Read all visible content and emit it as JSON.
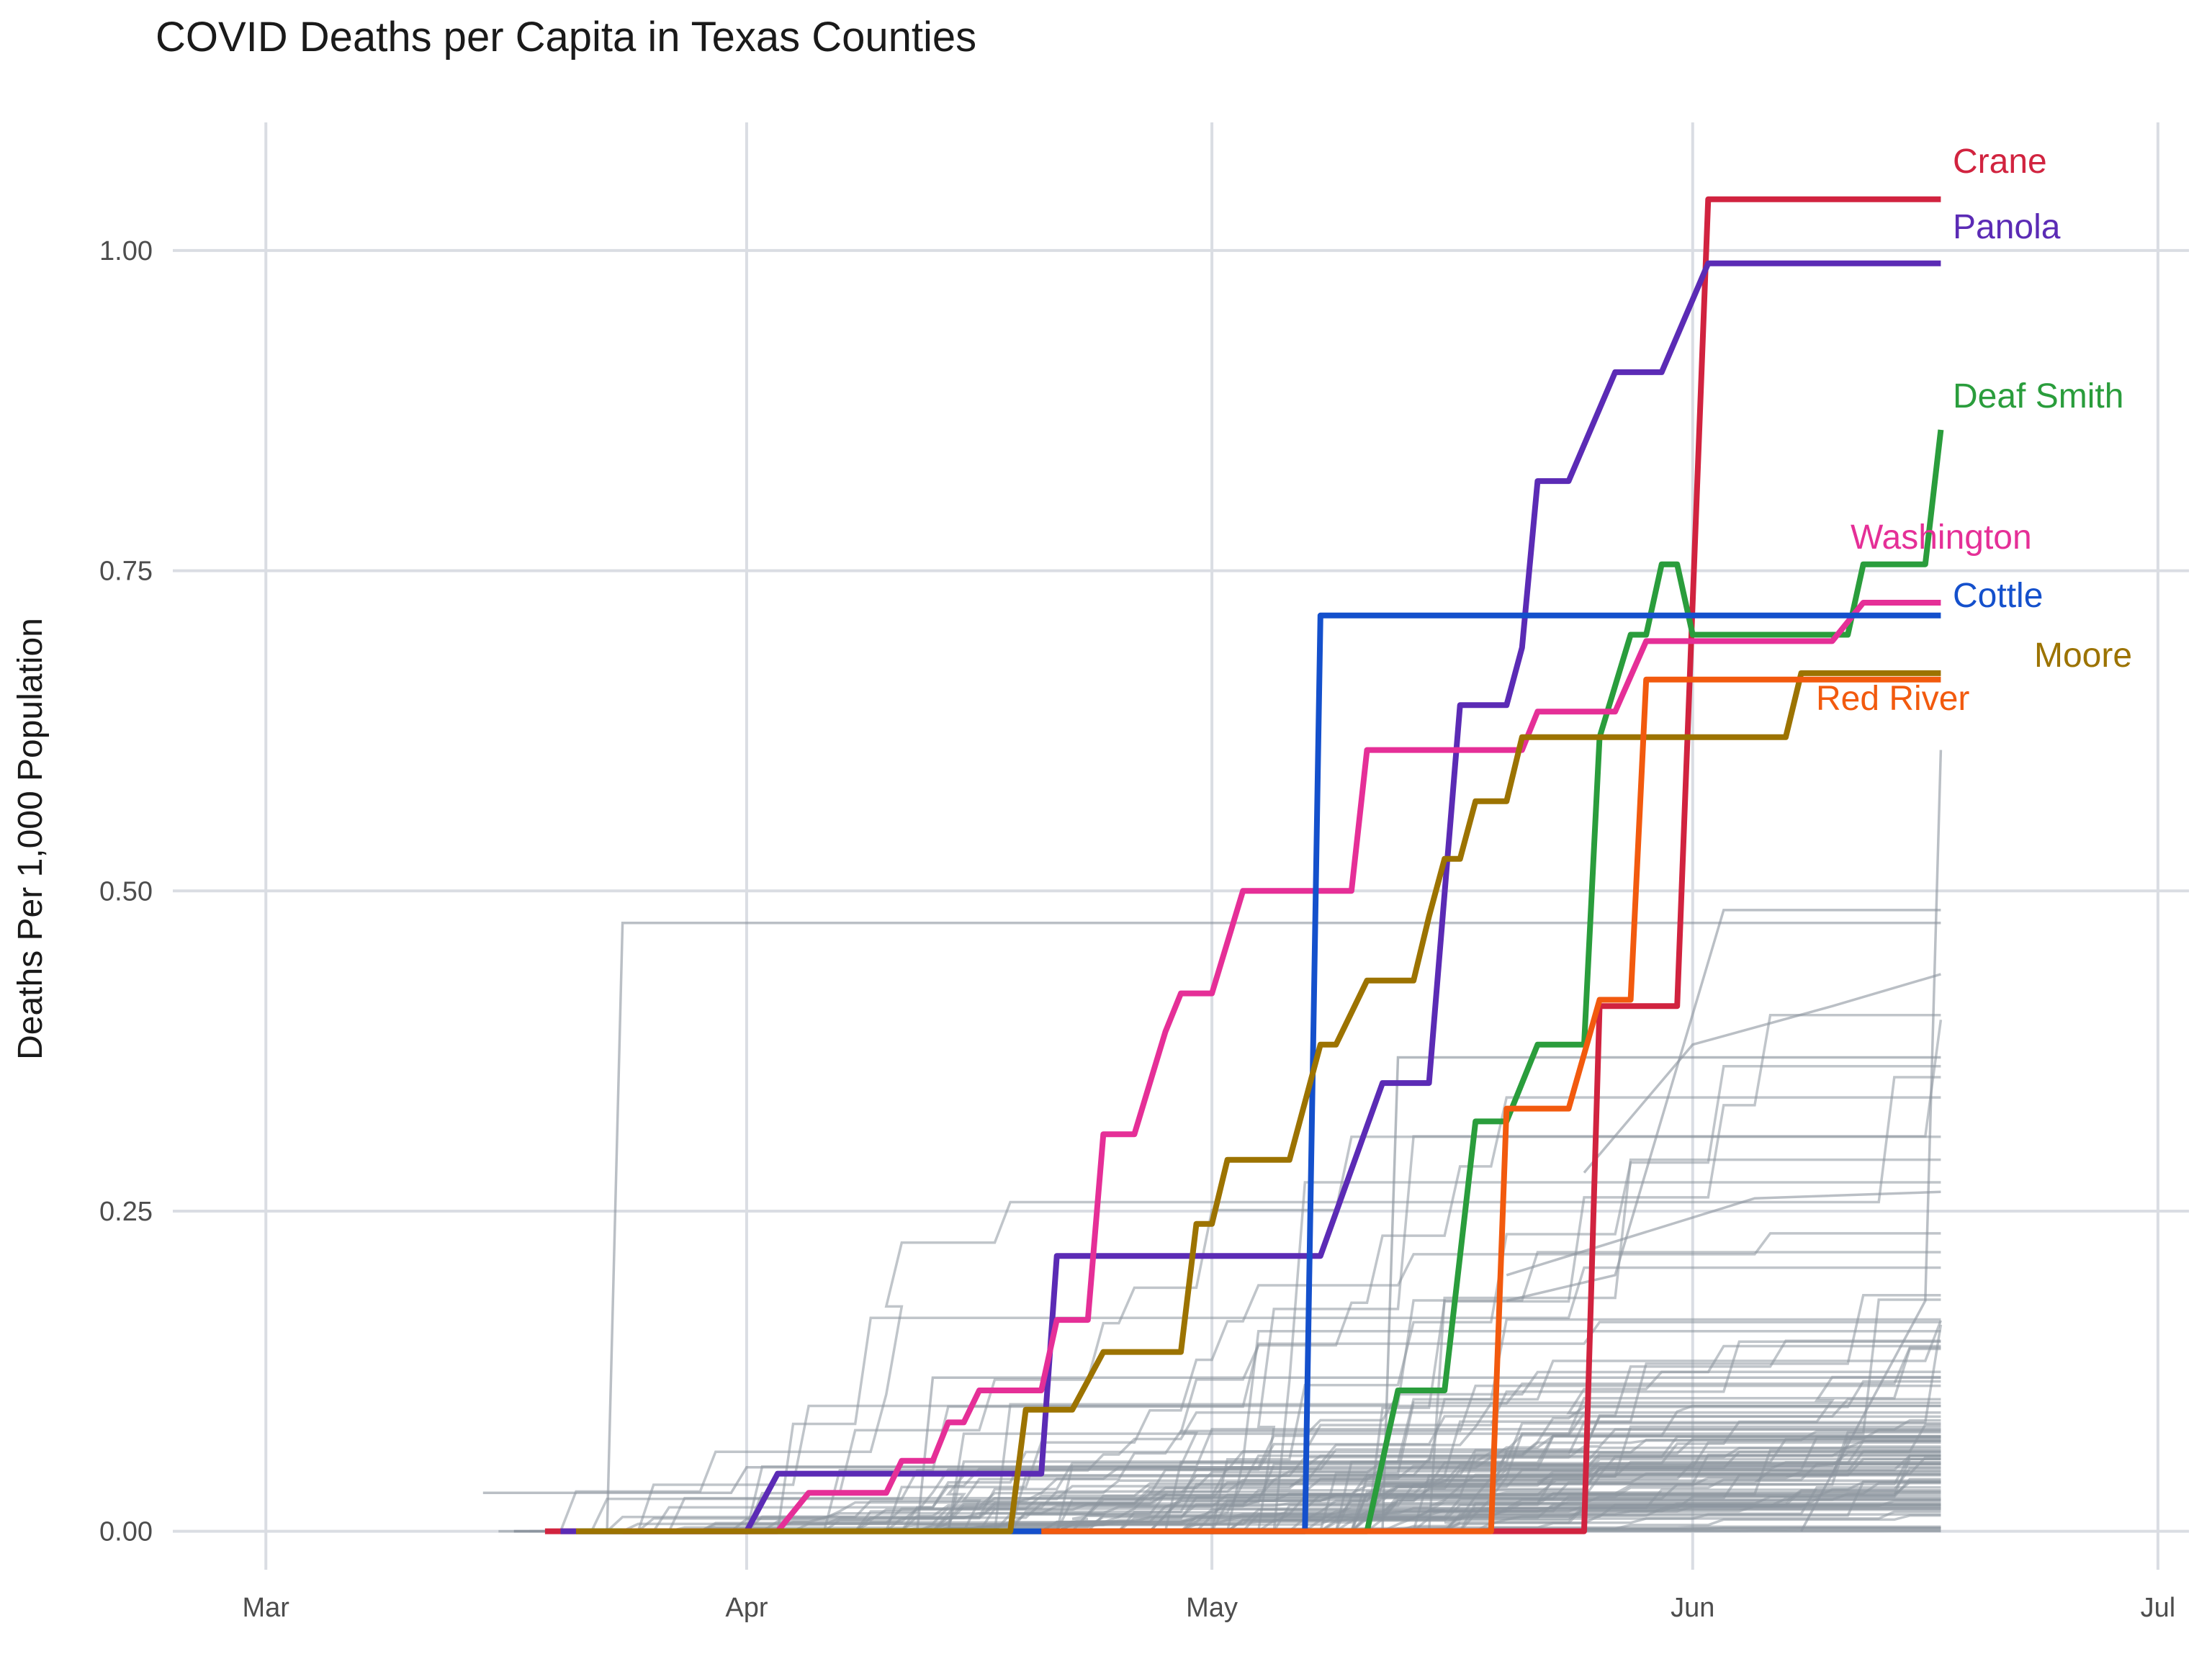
{
  "chart_data": {
    "type": "line",
    "title": "COVID Deaths per Capita in Texas Counties",
    "xlabel": "",
    "ylabel": "Deaths Per 1,000 Population",
    "x_tick_labels": [
      "Mar",
      "Apr",
      "May",
      "Jun",
      "Jul"
    ],
    "x_tick_dates": [
      "2020-03-01",
      "2020-04-01",
      "2020-05-01",
      "2020-06-01",
      "2020-07-01"
    ],
    "y_tick_labels": [
      "0.00",
      "0.25",
      "0.50",
      "0.75",
      "1.00"
    ],
    "y_ticks": [
      0,
      0.25,
      0.5,
      0.75,
      1.0
    ],
    "xlim": [
      "2020-02-24",
      "2020-07-03"
    ],
    "ylim": [
      -0.03,
      1.1
    ],
    "grid": true,
    "legend": "none",
    "highlighted_series": [
      {
        "name": "Crane",
        "color": "#d1233f",
        "points": [
          [
            "2020-03-19",
            0
          ],
          [
            "2020-05-25",
            0
          ],
          [
            "2020-05-26",
            0.41
          ],
          [
            "2020-05-31",
            0.41
          ],
          [
            "2020-06-02",
            1.04
          ],
          [
            "2020-06-17",
            1.04
          ]
        ]
      },
      {
        "name": "Panola",
        "color": "#5b2bb5",
        "points": [
          [
            "2020-03-20",
            0
          ],
          [
            "2020-04-01",
            0
          ],
          [
            "2020-04-03",
            0.045
          ],
          [
            "2020-04-20",
            0.045
          ],
          [
            "2020-04-21",
            0.215
          ],
          [
            "2020-05-08",
            0.215
          ],
          [
            "2020-05-12",
            0.35
          ],
          [
            "2020-05-15",
            0.35
          ],
          [
            "2020-05-17",
            0.645
          ],
          [
            "2020-05-20",
            0.645
          ],
          [
            "2020-05-21",
            0.69
          ],
          [
            "2020-05-22",
            0.82
          ],
          [
            "2020-05-24",
            0.82
          ],
          [
            "2020-05-27",
            0.905
          ],
          [
            "2020-05-30",
            0.905
          ],
          [
            "2020-06-02",
            0.99
          ],
          [
            "2020-06-17",
            0.99
          ]
        ]
      },
      {
        "name": "Deaf Smith",
        "color": "#2a9d3c",
        "points": [
          [
            "2020-03-21",
            0
          ],
          [
            "2020-05-11",
            0
          ],
          [
            "2020-05-13",
            0.11
          ],
          [
            "2020-05-16",
            0.11
          ],
          [
            "2020-05-18",
            0.32
          ],
          [
            "2020-05-20",
            0.32
          ],
          [
            "2020-05-22",
            0.38
          ],
          [
            "2020-05-25",
            0.38
          ],
          [
            "2020-05-26",
            0.62
          ],
          [
            "2020-05-28",
            0.7
          ],
          [
            "2020-05-29",
            0.7
          ],
          [
            "2020-05-30",
            0.755
          ],
          [
            "2020-05-31",
            0.755
          ],
          [
            "2020-06-01",
            0.7
          ],
          [
            "2020-06-11",
            0.7
          ],
          [
            "2020-06-12",
            0.755
          ],
          [
            "2020-06-16",
            0.755
          ],
          [
            "2020-06-17",
            0.86
          ]
        ]
      },
      {
        "name": "Washington",
        "color": "#e52f97",
        "points": [
          [
            "2020-03-24",
            0
          ],
          [
            "2020-04-03",
            0
          ],
          [
            "2020-04-05",
            0.03
          ],
          [
            "2020-04-10",
            0.03
          ],
          [
            "2020-04-11",
            0.055
          ],
          [
            "2020-04-13",
            0.055
          ],
          [
            "2020-04-14",
            0.085
          ],
          [
            "2020-04-15",
            0.085
          ],
          [
            "2020-04-16",
            0.11
          ],
          [
            "2020-04-20",
            0.11
          ],
          [
            "2020-04-21",
            0.165
          ],
          [
            "2020-04-23",
            0.165
          ],
          [
            "2020-04-24",
            0.31
          ],
          [
            "2020-04-26",
            0.31
          ],
          [
            "2020-04-28",
            0.39
          ],
          [
            "2020-04-29",
            0.42
          ],
          [
            "2020-05-01",
            0.42
          ],
          [
            "2020-05-03",
            0.5
          ],
          [
            "2020-05-10",
            0.5
          ],
          [
            "2020-05-11",
            0.61
          ],
          [
            "2020-05-21",
            0.61
          ],
          [
            "2020-05-22",
            0.64
          ],
          [
            "2020-05-27",
            0.64
          ],
          [
            "2020-05-29",
            0.695
          ],
          [
            "2020-06-10",
            0.695
          ],
          [
            "2020-06-12",
            0.725
          ],
          [
            "2020-06-17",
            0.725
          ]
        ]
      },
      {
        "name": "Cottle",
        "color": "#1450cc",
        "points": [
          [
            "2020-04-18",
            0
          ],
          [
            "2020-05-07",
            0
          ],
          [
            "2020-05-08",
            0.715
          ],
          [
            "2020-06-17",
            0.715
          ]
        ]
      },
      {
        "name": "Moore",
        "color": "#9c7300",
        "points": [
          [
            "2020-03-21",
            0
          ],
          [
            "2020-04-18",
            0
          ],
          [
            "2020-04-19",
            0.095
          ],
          [
            "2020-04-22",
            0.095
          ],
          [
            "2020-04-24",
            0.14
          ],
          [
            "2020-04-29",
            0.14
          ],
          [
            "2020-04-30",
            0.24
          ],
          [
            "2020-05-01",
            0.24
          ],
          [
            "2020-05-02",
            0.29
          ],
          [
            "2020-05-06",
            0.29
          ],
          [
            "2020-05-08",
            0.38
          ],
          [
            "2020-05-09",
            0.38
          ],
          [
            "2020-05-11",
            0.43
          ],
          [
            "2020-05-14",
            0.43
          ],
          [
            "2020-05-15",
            0.48
          ],
          [
            "2020-05-16",
            0.525
          ],
          [
            "2020-05-17",
            0.525
          ],
          [
            "2020-05-18",
            0.57
          ],
          [
            "2020-05-20",
            0.57
          ],
          [
            "2020-05-21",
            0.62
          ],
          [
            "2020-06-07",
            0.62
          ],
          [
            "2020-06-08",
            0.67
          ],
          [
            "2020-06-17",
            0.67
          ]
        ]
      },
      {
        "name": "Red River",
        "color": "#f25a0e",
        "points": [
          [
            "2020-04-20",
            0
          ],
          [
            "2020-05-19",
            0
          ],
          [
            "2020-05-20",
            0.33
          ],
          [
            "2020-05-24",
            0.33
          ],
          [
            "2020-05-26",
            0.415
          ],
          [
            "2020-05-28",
            0.415
          ],
          [
            "2020-05-29",
            0.665
          ],
          [
            "2020-06-17",
            0.665
          ]
        ]
      }
    ]
  }
}
